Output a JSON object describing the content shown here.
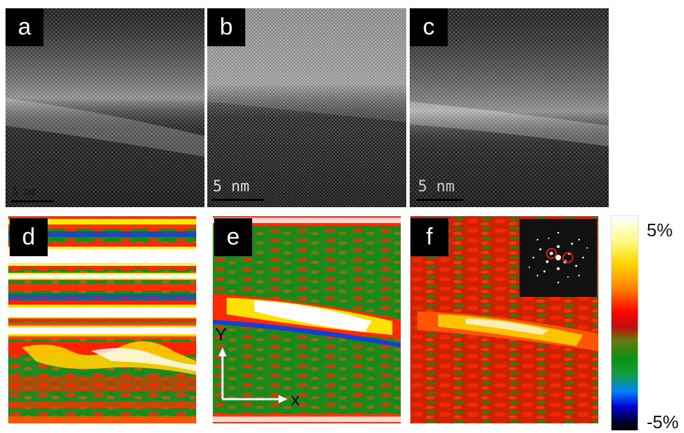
{
  "panels": {
    "a": {
      "label": "a",
      "scale": "5 nm"
    },
    "b": {
      "label": "b",
      "scale": "5 nm"
    },
    "c": {
      "label": "c",
      "scale": "5 nm"
    },
    "d": {
      "label": "d"
    },
    "e": {
      "label": "e",
      "axis_y": "Y",
      "axis_x": "x"
    },
    "f": {
      "label": "f"
    }
  },
  "colorbar": {
    "max": "5%",
    "min": "-5%"
  }
}
